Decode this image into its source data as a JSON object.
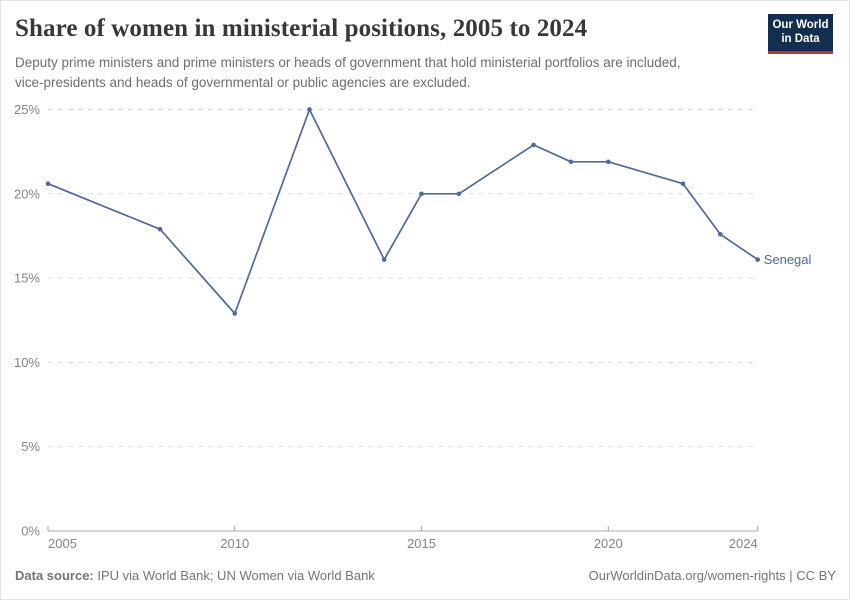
{
  "header": {
    "title": "Share of women in ministerial positions, 2005 to 2024",
    "subtitle": "Deputy prime ministers and prime ministers or heads of government that hold ministerial portfolios are included, vice-presidents and heads of governmental or public agencies are excluded.",
    "logo": {
      "line1": "Our World",
      "line2": "in Data"
    }
  },
  "chart_data": {
    "type": "line",
    "title": "Share of women in ministerial positions, 2005 to 2024",
    "xlabel": "",
    "ylabel": "",
    "xlim": [
      2005,
      2024
    ],
    "ylim": [
      0,
      25
    ],
    "x_ticks": [
      2005,
      2010,
      2015,
      2020,
      2024
    ],
    "y_ticks": [
      0,
      5,
      10,
      15,
      20,
      25
    ],
    "y_tick_suffix": "%",
    "grid": "horizontal-dashed",
    "legend_position": "end-of-line-label",
    "series": [
      {
        "name": "Senegal",
        "color": "#4c6a9c",
        "points": [
          [
            2005,
            20.6
          ],
          [
            2008,
            17.9
          ],
          [
            2010,
            12.9
          ],
          [
            2012,
            25
          ],
          [
            2014,
            16.1
          ],
          [
            2015,
            20
          ],
          [
            2016,
            20
          ],
          [
            2018,
            22.9
          ],
          [
            2019,
            21.9
          ],
          [
            2020,
            21.9
          ],
          [
            2022,
            20.6
          ],
          [
            2023,
            17.6
          ],
          [
            2024,
            16.1
          ]
        ]
      }
    ]
  },
  "footer": {
    "source_label": "Data source:",
    "source_text": " IPU via World Bank; UN Women via World Bank",
    "right_text": "OurWorldinData.org/women-rights | CC BY"
  },
  "colors": {
    "line": "#4c6a9c",
    "gridline": "#dedede",
    "axis_line": "#a8a8a8",
    "axis_text": "#858585",
    "title_text": "#383838",
    "subtitle_text": "#6e6e6e",
    "footer_text": "#757575",
    "logo_bg": "#132e4e",
    "logo_stripe": "#c2332d"
  }
}
